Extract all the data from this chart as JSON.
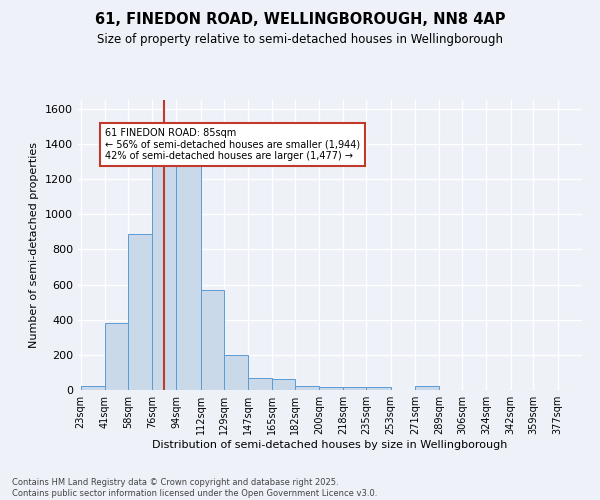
{
  "title": "61, FINEDON ROAD, WELLINGBOROUGH, NN8 4AP",
  "subtitle": "Size of property relative to semi-detached houses in Wellingborough",
  "xlabel": "Distribution of semi-detached houses by size in Wellingborough",
  "ylabel": "Number of semi-detached properties",
  "footer_line1": "Contains HM Land Registry data © Crown copyright and database right 2025.",
  "footer_line2": "Contains public sector information licensed under the Open Government Licence v3.0.",
  "bin_labels": [
    "23sqm",
    "41sqm",
    "58sqm",
    "76sqm",
    "94sqm",
    "112sqm",
    "129sqm",
    "147sqm",
    "165sqm",
    "182sqm",
    "200sqm",
    "218sqm",
    "235sqm",
    "253sqm",
    "271sqm",
    "289sqm",
    "306sqm",
    "324sqm",
    "342sqm",
    "359sqm",
    "377sqm"
  ],
  "bin_edges": [
    23,
    41,
    58,
    76,
    94,
    112,
    129,
    147,
    165,
    182,
    200,
    218,
    235,
    253,
    271,
    289,
    306,
    324,
    342,
    359,
    377
  ],
  "bar_heights": [
    20,
    380,
    890,
    1310,
    1310,
    570,
    200,
    70,
    65,
    25,
    15,
    15,
    15,
    0,
    20,
    0,
    0,
    0,
    0,
    0
  ],
  "bar_color": "#c9d9ea",
  "bar_edge_color": "#5b9bd5",
  "property_size": 85,
  "property_line_color": "#c0392b",
  "annotation_title": "61 FINEDON ROAD: 85sqm",
  "annotation_line1": "← 56% of semi-detached houses are smaller (1,944)",
  "annotation_line2": "42% of semi-detached houses are larger (1,477) →",
  "annotation_box_color": "#c0392b",
  "ylim": [
    0,
    1650
  ],
  "background_color": "#eef2f8"
}
